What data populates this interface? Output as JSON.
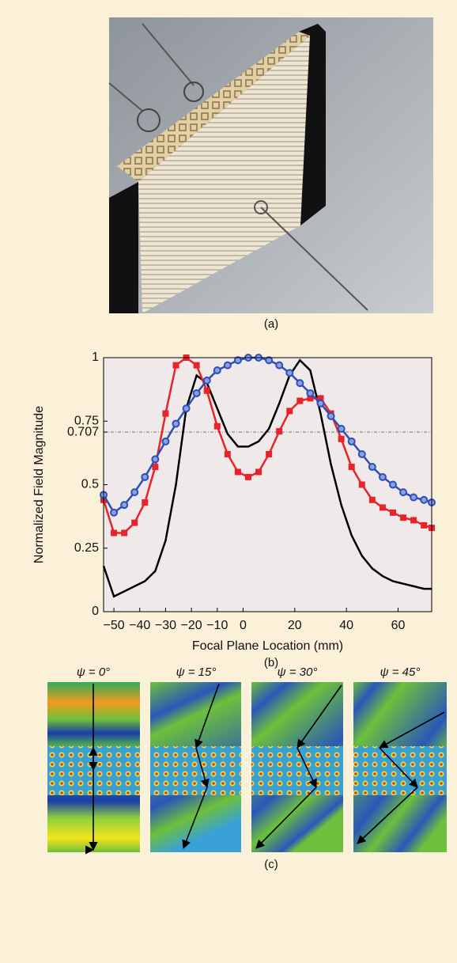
{
  "panel_labels": {
    "a": "(a)",
    "b": "(b)",
    "c": "(c)"
  },
  "field_titles": [
    "ψ = 0°",
    "ψ = 15°",
    "ψ = 30°",
    "ψ = 45°"
  ],
  "chart_data": {
    "type": "line",
    "xlabel": "Focal Plane Location (mm)",
    "ylabel": "Normalized Field Magnitude",
    "x": [
      -54,
      -50,
      -46,
      -42,
      -38,
      -34,
      -30,
      -26,
      -22,
      -18,
      -14,
      -10,
      -6,
      -2,
      2,
      6,
      10,
      14,
      18,
      22,
      26,
      30,
      34,
      38,
      42,
      46,
      50,
      54,
      58,
      62,
      66,
      70,
      73
    ],
    "series": [
      {
        "color": "#000000",
        "values": [
          0.18,
          0.06,
          0.08,
          0.1,
          0.12,
          0.16,
          0.28,
          0.5,
          0.8,
          0.93,
          0.9,
          0.8,
          0.7,
          0.65,
          0.65,
          0.67,
          0.72,
          0.82,
          0.93,
          0.99,
          0.95,
          0.78,
          0.58,
          0.42,
          0.3,
          0.22,
          0.17,
          0.14,
          0.12,
          0.11,
          0.1,
          0.09,
          0.09
        ]
      },
      {
        "color": "#e8232a",
        "marker": "square",
        "values": [
          0.44,
          0.31,
          0.31,
          0.35,
          0.43,
          0.57,
          0.78,
          0.97,
          1.0,
          0.97,
          0.87,
          0.73,
          0.62,
          0.55,
          0.53,
          0.55,
          0.62,
          0.71,
          0.79,
          0.83,
          0.84,
          0.84,
          0.78,
          0.68,
          0.57,
          0.5,
          0.44,
          0.41,
          0.39,
          0.37,
          0.36,
          0.34,
          0.33
        ]
      },
      {
        "color": "#2f4fb8",
        "marker": "circle",
        "values": [
          0.46,
          0.39,
          0.42,
          0.47,
          0.53,
          0.6,
          0.67,
          0.74,
          0.8,
          0.86,
          0.91,
          0.95,
          0.97,
          0.99,
          1.0,
          1.0,
          0.99,
          0.97,
          0.94,
          0.9,
          0.86,
          0.82,
          0.77,
          0.72,
          0.67,
          0.62,
          0.57,
          0.53,
          0.5,
          0.47,
          0.45,
          0.44,
          0.43
        ]
      }
    ],
    "xlim": [
      -54,
      73
    ],
    "xticks": [
      {
        "value": -50,
        "label": "−50"
      },
      {
        "value": -40,
        "label": "−40"
      },
      {
        "value": -30,
        "label": "−30"
      },
      {
        "value": -20,
        "label": "−20"
      },
      {
        "value": -10,
        "label": "−10"
      },
      0,
      20,
      40,
      60
    ],
    "ylim": [
      0,
      1
    ],
    "yticks": [
      0,
      0.25,
      0.5,
      0.707,
      0.75,
      1
    ],
    "reference_line": 0.707,
    "background": "#efe9ea"
  }
}
